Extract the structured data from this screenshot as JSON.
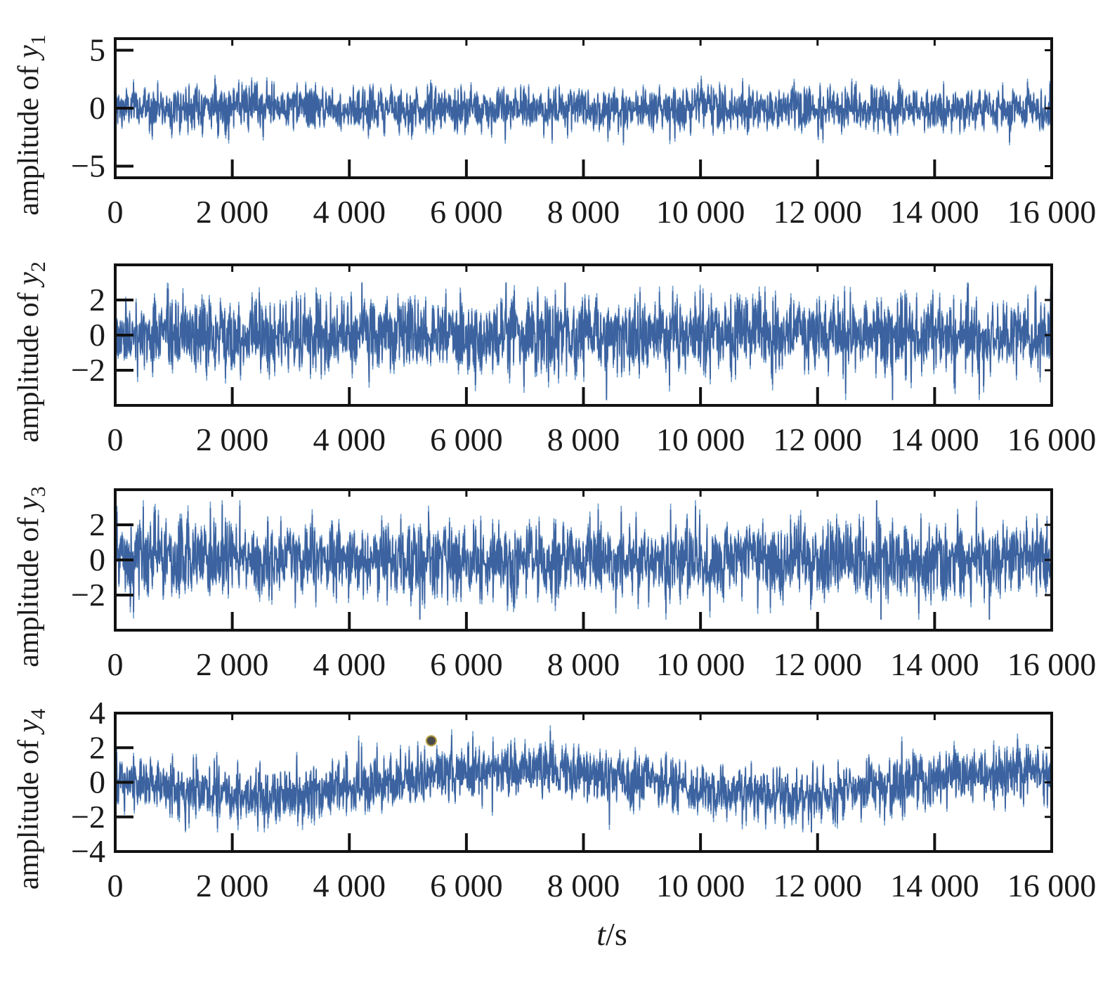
{
  "figure": {
    "xlabel_italic": "t",
    "xlabel_unit": "/s"
  },
  "style": {
    "trace_color": "#3c63a0",
    "trace_light_color": "#6f9ccb",
    "axis_color": "#111111",
    "marker_color": "#4a4a4a"
  },
  "chart_data": [
    {
      "type": "line",
      "ylabel_prefix": "amplitude of ",
      "ylabel_var": "y",
      "ylabel_sub": "1",
      "xlim": [
        0,
        16000
      ],
      "ylim": [
        -6,
        6
      ],
      "xticks": [
        0,
        2000,
        4000,
        6000,
        8000,
        10000,
        12000,
        14000,
        16000
      ],
      "xtick_labels": [
        "0",
        "2 000",
        "4 000",
        "6 000",
        "8 000",
        "10 000",
        "12 000",
        "14 000",
        "16 000"
      ],
      "yticks": [
        -5,
        0,
        5
      ],
      "ytick_labels": [
        "−5",
        "0",
        "5"
      ],
      "signal": {
        "n_samples": 16000,
        "noise_std": 0.9,
        "peak_max": 3.0,
        "peak_min": -3.2,
        "drift_amplitude": 0.1,
        "drift_period": 8000
      }
    },
    {
      "type": "line",
      "ylabel_prefix": "amplitude of ",
      "ylabel_var": "y",
      "ylabel_sub": "2",
      "xlim": [
        0,
        16000
      ],
      "ylim": [
        -4,
        4
      ],
      "xticks": [
        0,
        2000,
        4000,
        6000,
        8000,
        10000,
        12000,
        14000,
        16000
      ],
      "xtick_labels": [
        "0",
        "2 000",
        "4 000",
        "6 000",
        "8 000",
        "10 000",
        "12 000",
        "14 000",
        "16 000"
      ],
      "yticks": [
        -2,
        0,
        2
      ],
      "ytick_labels": [
        "−2",
        "0",
        "2"
      ],
      "signal": {
        "n_samples": 16000,
        "noise_std": 1.0,
        "peak_max": 3.0,
        "peak_min": -3.7,
        "drift_amplitude": 0.0,
        "drift_period": 8000
      }
    },
    {
      "type": "line",
      "ylabel_prefix": "amplitude of ",
      "ylabel_var": "y",
      "ylabel_sub": "3",
      "xlim": [
        0,
        16000
      ],
      "ylim": [
        -4,
        4
      ],
      "xticks": [
        0,
        2000,
        4000,
        6000,
        8000,
        10000,
        12000,
        14000,
        16000
      ],
      "xtick_labels": [
        "0",
        "2 000",
        "4 000",
        "6 000",
        "8 000",
        "10 000",
        "12 000",
        "14 000",
        "16 000"
      ],
      "yticks": [
        -2,
        0,
        2
      ],
      "ytick_labels": [
        "−2",
        "0",
        "2"
      ],
      "signal": {
        "n_samples": 16000,
        "noise_std": 1.05,
        "peak_max": 3.4,
        "peak_min": -3.4,
        "drift_amplitude": 0.0,
        "drift_period": 8000
      }
    },
    {
      "type": "line",
      "ylabel_prefix": "amplitude of ",
      "ylabel_var": "y",
      "ylabel_sub": "4",
      "xlim": [
        0,
        16000
      ],
      "ylim": [
        -4,
        4
      ],
      "xticks": [
        0,
        2000,
        4000,
        6000,
        8000,
        10000,
        12000,
        14000,
        16000
      ],
      "xtick_labels": [
        "0",
        "2 000",
        "4 000",
        "6 000",
        "8 000",
        "10 000",
        "12 000",
        "14 000",
        "16 000"
      ],
      "yticks": [
        -4,
        -2,
        0,
        2,
        4
      ],
      "ytick_labels": [
        "−4",
        "−2",
        "0",
        "2",
        "4"
      ],
      "signal": {
        "n_samples": 16000,
        "noise_std": 0.75,
        "peak_max": 3.3,
        "peak_min": -2.9,
        "drift_amplitude": 0.7,
        "drift_period": 9000
      },
      "annotation_point": {
        "x": 5400,
        "y": 2.4
      }
    }
  ]
}
